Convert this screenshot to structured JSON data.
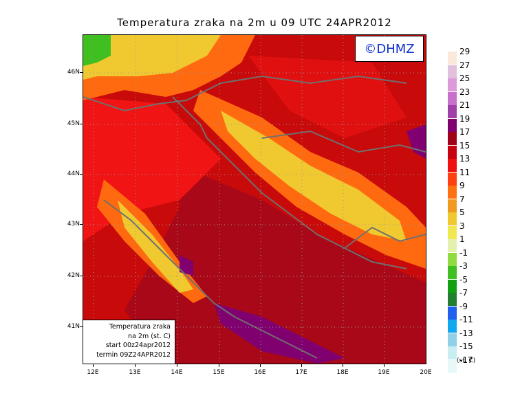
{
  "title": "Temperatura zraka na 2m u 09 UTC 24APR2012",
  "logo": "©DHMZ",
  "info_box": {
    "line1": "Temperatura zraka",
    "line2": "na 2m (st. C)",
    "line3": "start 00z24apr2012",
    "line4": "termin 09Z24APR2012"
  },
  "lat_labels": [
    "46N",
    "45N",
    "44N",
    "43N",
    "42N",
    "41N"
  ],
  "lon_labels": [
    "12E",
    "13E",
    "14E",
    "15E",
    "16E",
    "17E",
    "18E",
    "19E",
    "20E"
  ],
  "legend": {
    "units": "(st. C)",
    "labels": [
      "29",
      "27",
      "25",
      "23",
      "21",
      "19",
      "17",
      "15",
      "13",
      "11",
      "9",
      "7",
      "5",
      "3",
      "1",
      "-1",
      "-3",
      "-5",
      "-7",
      "-9",
      "-11",
      "-13",
      "-15",
      "-17"
    ],
    "colors": [
      "#fbe8d8",
      "#e0c0dc",
      "#dc9ad8",
      "#c870cc",
      "#a040a8",
      "#800070",
      "#a00018",
      "#c80010",
      "#f01010",
      "#ff4010",
      "#ff7010",
      "#f09a20",
      "#f0c830",
      "#f0e850",
      "#e4f0b0",
      "#90dc40",
      "#40c020",
      "#10a010",
      "#208030",
      "#2060f0",
      "#10a8f0",
      "#90d0e8",
      "#c8eef4",
      "#e8f8f8"
    ]
  }
}
